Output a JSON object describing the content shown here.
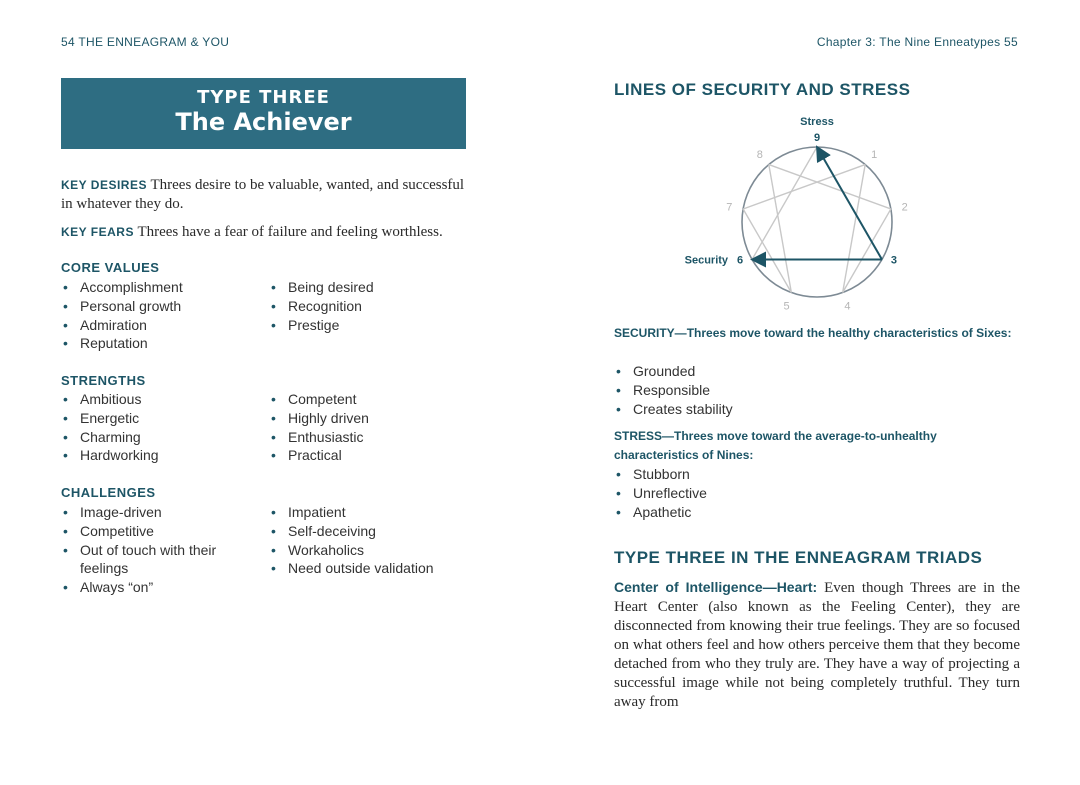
{
  "left_page": {
    "running_head": "54  THE ENNEAGRAM & YOU",
    "type_label": "TYPE THREE",
    "type_name": "The Achiever",
    "key_desires_label": "KEY DESIRES",
    "key_desires_text": "Threes desire to be valuable, wanted, and successful in whatever they do.",
    "key_fears_label": "KEY FEARS",
    "key_fears_text": "Threes have a fear of failure and feeling worthless.",
    "core_values": {
      "title": "CORE VALUES",
      "col1": [
        "Accomplishment",
        "Personal growth",
        "Admiration",
        "Reputation"
      ],
      "col2": [
        "Being desired",
        "Recognition",
        "Prestige"
      ]
    },
    "strengths": {
      "title": "STRENGTHS",
      "col1": [
        "Ambitious",
        "Energetic",
        "Charming",
        "Hardworking"
      ],
      "col2": [
        "Competent",
        "Highly driven",
        "Enthusiastic",
        "Practical"
      ]
    },
    "challenges": {
      "title": "CHALLENGES",
      "col1": [
        "Image-driven",
        "Competitive",
        "Out of touch with their feelings",
        "Always “on”"
      ],
      "col2": [
        "Impatient",
        "Self-deceiving",
        "Workaholics",
        "Need outside validation"
      ]
    }
  },
  "right_page": {
    "running_head": "Chapter 3: The Nine Enneatypes  55",
    "lines_title": "LINES OF SECURITY AND STRESS",
    "diagram": {
      "stress_label": "Stress",
      "security_label": "Security",
      "numbers": [
        "9",
        "1",
        "2",
        "3",
        "4",
        "5",
        "6",
        "7",
        "8"
      ],
      "accent": "#1d5566",
      "line_color": "#c8c8c8"
    },
    "security_label": "SECURITY—",
    "security_text": "Threes move toward the healthy characteristics of Sixes:",
    "security_items": [
      "Grounded",
      "Responsible",
      "Creates stability"
    ],
    "stress_label": "STRESS—",
    "stress_text": "Threes move toward the average-to-unhealthy characteristics of Nines:",
    "stress_items": [
      "Stubborn",
      "Unreflective",
      "Apathetic"
    ],
    "triads_title": "TYPE THREE IN THE ENNEAGRAM TRIADS",
    "center_label": "Center of Intelligence—Heart:",
    "center_text": "Even though Threes are in the Heart Center (also known as the Feeling Center), they are disconnected from knowing their true feelings. They are so focused on what others feel and how others perceive them that they become detached from who they truly are. They have a way of projecting a successful image while not being completely truthful. They turn away from"
  }
}
